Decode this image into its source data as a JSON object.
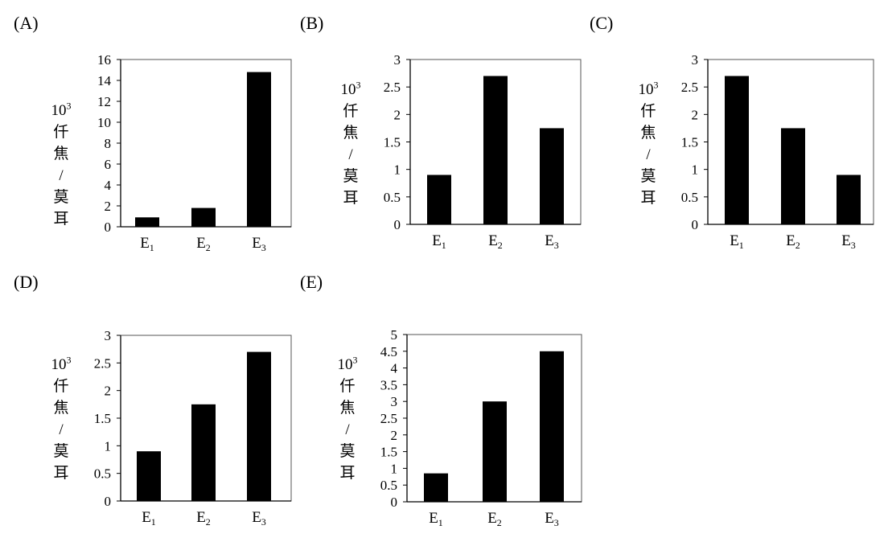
{
  "chart_data": [
    {
      "panel": "(A)",
      "type": "bar",
      "ylabel": [
        "10",
        "3",
        "仟",
        "焦",
        "/",
        "莫",
        "耳"
      ],
      "categories": [
        {
          "base": "E",
          "sub": "1"
        },
        {
          "base": "E",
          "sub": "2"
        },
        {
          "base": "E",
          "sub": "3"
        }
      ],
      "values": [
        0.9,
        1.8,
        14.8
      ],
      "ylim": [
        0,
        16
      ],
      "yticks": [
        "0",
        "2",
        "4",
        "6",
        "8",
        "10",
        "12",
        "14",
        "16"
      ],
      "grid": false
    },
    {
      "panel": "(B)",
      "type": "bar",
      "ylabel": [
        "10",
        "3",
        "仟",
        "焦",
        "/",
        "莫",
        "耳"
      ],
      "categories": [
        {
          "base": "E",
          "sub": "1"
        },
        {
          "base": "E",
          "sub": "2"
        },
        {
          "base": "E",
          "sub": "3"
        }
      ],
      "values": [
        0.9,
        2.7,
        1.75
      ],
      "ylim": [
        0,
        3
      ],
      "yticks": [
        "0",
        "0.5",
        "1",
        "1.5",
        "2",
        "2.5",
        "3"
      ],
      "grid": false
    },
    {
      "panel": "(C)",
      "type": "bar",
      "ylabel": [
        "10",
        "3",
        "仟",
        "焦",
        "/",
        "莫",
        "耳"
      ],
      "categories": [
        {
          "base": "E",
          "sub": "1"
        },
        {
          "base": "E",
          "sub": "2"
        },
        {
          "base": "E",
          "sub": "3"
        }
      ],
      "values": [
        2.7,
        1.75,
        0.9
      ],
      "ylim": [
        0,
        3
      ],
      "yticks": [
        "0",
        "0.5",
        "1",
        "1.5",
        "2",
        "2.5",
        "3"
      ],
      "grid": false
    },
    {
      "panel": "(D)",
      "type": "bar",
      "ylabel": [
        "10",
        "3",
        "仟",
        "焦",
        "/",
        "莫",
        "耳"
      ],
      "categories": [
        {
          "base": "E",
          "sub": "1"
        },
        {
          "base": "E",
          "sub": "2"
        },
        {
          "base": "E",
          "sub": "3"
        }
      ],
      "values": [
        0.9,
        1.75,
        2.7
      ],
      "ylim": [
        0,
        3
      ],
      "yticks": [
        "0",
        "0.5",
        "1",
        "1.5",
        "2",
        "2.5",
        "3"
      ],
      "grid": false
    },
    {
      "panel": "(E)",
      "type": "bar",
      "ylabel": [
        "10",
        "3",
        "仟",
        "焦",
        "/",
        "莫",
        "耳"
      ],
      "categories": [
        {
          "base": "E",
          "sub": "1"
        },
        {
          "base": "E",
          "sub": "2"
        },
        {
          "base": "E",
          "sub": "3"
        }
      ],
      "values": [
        0.85,
        3.0,
        4.5
      ],
      "ylim": [
        0,
        5
      ],
      "yticks": [
        "0",
        "0.5",
        "1",
        "1.5",
        "2",
        "2.5",
        "3",
        "3.5",
        "4",
        "4.5",
        "5"
      ],
      "grid": false
    }
  ],
  "colors": {
    "bar": "#000000",
    "axis": "#000000",
    "frame": "#555555"
  }
}
